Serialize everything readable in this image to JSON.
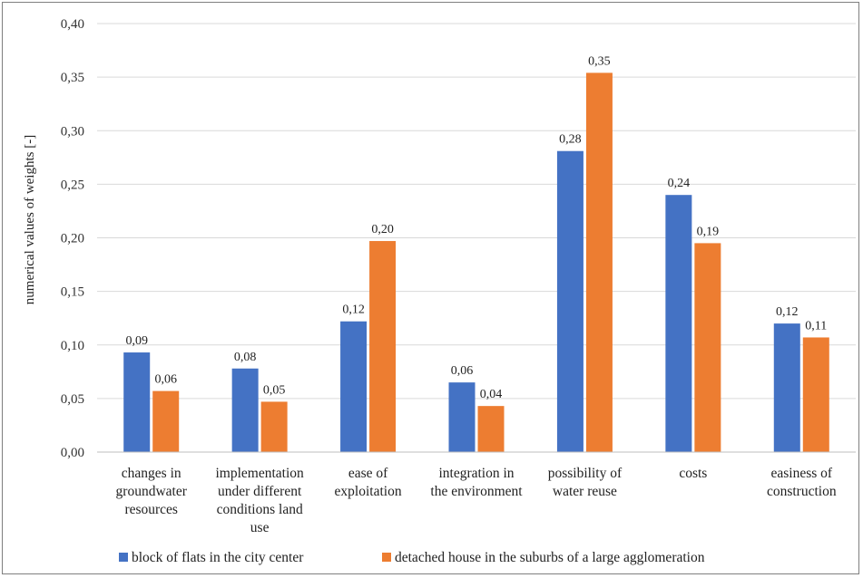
{
  "chart_data": {
    "type": "bar",
    "title": "",
    "ylabel": "numerical values of weights [-]",
    "xlabel": "",
    "ylim": [
      0,
      0.4
    ],
    "yticks": [
      "0,00",
      "0,05",
      "0,10",
      "0,15",
      "0,20",
      "0,25",
      "0,30",
      "0,35",
      "0,40"
    ],
    "ytick_values": [
      0,
      0.05,
      0.1,
      0.15,
      0.2,
      0.25,
      0.3,
      0.35,
      0.4
    ],
    "grid": true,
    "legend_position": "bottom",
    "categories": [
      [
        "changes in",
        "groundwater",
        "resources"
      ],
      [
        "implementation",
        "under different",
        "conditions land",
        "use"
      ],
      [
        "ease of",
        "exploitation"
      ],
      [
        "integration in",
        "the environment"
      ],
      [
        "possibility of",
        "water reuse"
      ],
      [
        "costs"
      ],
      [
        "easiness of",
        "construction"
      ]
    ],
    "series": [
      {
        "name": "block of flats in the city center",
        "color": "#4472c4",
        "values": [
          0.093,
          0.078,
          0.122,
          0.065,
          0.281,
          0.24,
          0.12
        ],
        "labels": [
          "0,09",
          "0,08",
          "0,12",
          "0,06",
          "0,28",
          "0,24",
          "0,12"
        ]
      },
      {
        "name": "detached house in the suburbs of a large agglomeration",
        "color": "#ed7d31",
        "values": [
          0.057,
          0.047,
          0.197,
          0.043,
          0.354,
          0.195,
          0.107
        ],
        "labels": [
          "0,06",
          "0,05",
          "0,20",
          "0,04",
          "0,35",
          "0,19",
          "0,11"
        ]
      }
    ]
  }
}
